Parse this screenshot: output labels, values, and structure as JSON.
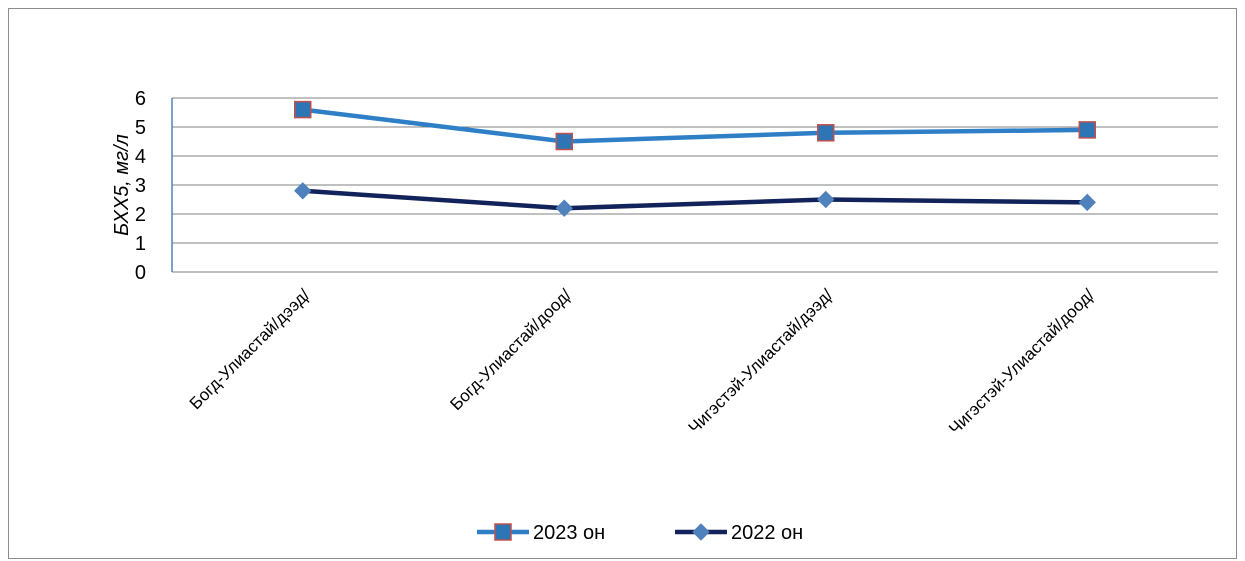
{
  "chart_data": {
    "type": "line",
    "categories": [
      "Богд-Улиастай/дээд/",
      "Богд-Улиастай/доод/",
      "Чигэстэй-Улиастай/дээд/",
      "Чигэстэй-Улиастай/доод/"
    ],
    "series": [
      {
        "name": "2023 он",
        "values": [
          5.6,
          4.5,
          4.8,
          4.9
        ],
        "color": "#2E7FC6",
        "marker": "square",
        "marker_fill": "#2E75B6",
        "marker_stroke": "#C0504D"
      },
      {
        "name": "2022 он",
        "values": [
          2.8,
          2.2,
          2.5,
          2.4
        ],
        "color": "#12225A",
        "marker": "diamond",
        "marker_fill": "#4F81BD",
        "marker_stroke": "#4F81BD"
      }
    ],
    "title": "",
    "xlabel": "",
    "ylabel": "БХХ5, мг/л",
    "ylim": [
      0,
      6
    ],
    "yticks": [
      0,
      1,
      2,
      3,
      4,
      5,
      6
    ],
    "grid": true,
    "legend_position": "bottom"
  }
}
